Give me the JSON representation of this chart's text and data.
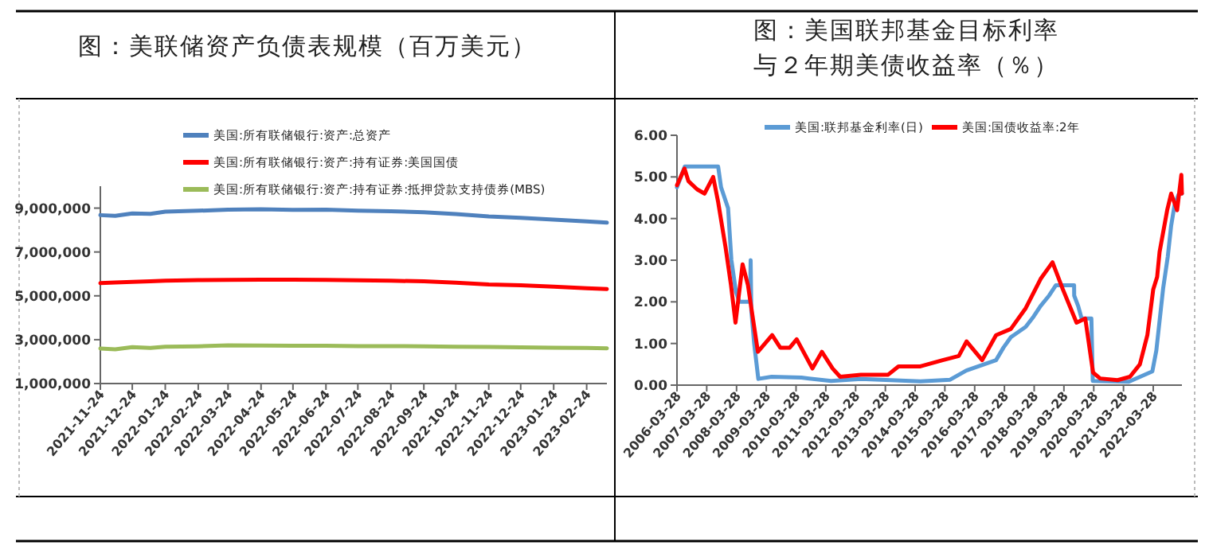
{
  "chart_data": [
    {
      "type": "line",
      "title": "图：美联储资产负债表规模（百万美元）",
      "legend": "top left",
      "x": [
        "2021-11-24",
        "2021-12-08",
        "2021-12-24",
        "2022-01-10",
        "2022-01-24",
        "2022-02-24",
        "2022-03-24",
        "2022-04-24",
        "2022-05-24",
        "2022-06-24",
        "2022-07-24",
        "2022-08-24",
        "2022-09-24",
        "2022-10-24",
        "2022-11-24",
        "2022-12-24",
        "2023-01-24",
        "2023-02-24",
        "2023-03-15"
      ],
      "series": [
        {
          "name": "美国:所有联储银行:资产:总资产",
          "color": "#4f81bd",
          "values": [
            8680000,
            8650000,
            8760000,
            8740000,
            8840000,
            8880000,
            8930000,
            8950000,
            8920000,
            8930000,
            8880000,
            8860000,
            8810000,
            8730000,
            8620000,
            8560000,
            8480000,
            8390000,
            8340000
          ]
        },
        {
          "name": "美国:所有联储银行:资产:持有证券:美国国债",
          "color": "#ff0000",
          "values": [
            5580000,
            5610000,
            5640000,
            5660000,
            5690000,
            5720000,
            5730000,
            5740000,
            5740000,
            5730000,
            5710000,
            5690000,
            5660000,
            5600000,
            5520000,
            5480000,
            5420000,
            5350000,
            5310000
          ]
        },
        {
          "name": "美国:所有联储银行:资产:持有证券:抵押贷款支持债券(MBS)",
          "color": "#9bbb59",
          "values": [
            2600000,
            2560000,
            2660000,
            2620000,
            2680000,
            2700000,
            2740000,
            2730000,
            2720000,
            2720000,
            2710000,
            2710000,
            2700000,
            2680000,
            2670000,
            2650000,
            2630000,
            2620000,
            2610000
          ]
        }
      ],
      "ylim": [
        1000000,
        10000000
      ],
      "yticks": [
        {
          "value": 1000000,
          "label": "1,000,000"
        },
        {
          "value": 3000000,
          "label": "3,000,000"
        },
        {
          "value": 5000000,
          "label": "5,000,000"
        },
        {
          "value": 7000000,
          "label": "7,000,000"
        },
        {
          "value": 9000000,
          "label": "9,000,000"
        }
      ],
      "xlim": [
        "2021-11-24",
        "2023-03-15"
      ],
      "xticks": [
        "2021-11-24",
        "2021-12-24",
        "2022-01-24",
        "2022-02-24",
        "2022-03-24",
        "2022-04-24",
        "2022-05-24",
        "2022-06-24",
        "2022-07-24",
        "2022-08-24",
        "2022-09-24",
        "2022-10-24",
        "2022-11-24",
        "2022-12-24",
        "2023-01-24",
        "2023-02-24"
      ]
    },
    {
      "type": "line",
      "title": "图：美国联邦基金目标利率",
      "subtitle": "与２年期美债收益率（％）",
      "legend": "top",
      "series": [
        {
          "name": "美国:联邦基金利率(日)",
          "color": "#5b9bd5",
          "x": [
            "2006-03-28",
            "2006-05-15",
            "2006-07-01",
            "2007-08-15",
            "2007-09-20",
            "2007-12-15",
            "2008-01-25",
            "2008-03-20",
            "2008-05-01",
            "2008-09-10",
            "2008-09-17",
            "2008-09-25",
            "2008-10-30",
            "2008-12-20",
            "2009-06-01",
            "2010-06-01",
            "2011-06-01",
            "2012-06-01",
            "2013-06-01",
            "2014-06-01",
            "2015-06-01",
            "2015-12-17",
            "2016-12-15",
            "2017-03-16",
            "2017-06-15",
            "2017-12-14",
            "2018-03-22",
            "2018-06-14",
            "2018-09-27",
            "2018-12-20",
            "2019-07-31",
            "2019-08-01",
            "2019-09-19",
            "2019-10-31",
            "2020-02-28",
            "2020-03-16",
            "2021-06-01",
            "2022-03-17",
            "2022-05-05",
            "2022-06-16",
            "2022-07-28",
            "2022-09-22",
            "2022-11-03",
            "2022-12-15",
            "2023-02-02",
            "2023-03-15"
          ],
          "values": [
            4.75,
            5.0,
            5.25,
            5.25,
            4.75,
            4.25,
            3.0,
            2.25,
            2.0,
            2.0,
            3.0,
            1.8,
            1.0,
            0.15,
            0.2,
            0.18,
            0.1,
            0.15,
            0.12,
            0.09,
            0.13,
            0.35,
            0.6,
            0.9,
            1.15,
            1.4,
            1.65,
            1.9,
            2.15,
            2.4,
            2.4,
            2.15,
            1.9,
            1.6,
            1.6,
            0.1,
            0.08,
            0.33,
            0.83,
            1.58,
            2.33,
            3.08,
            3.83,
            4.33,
            4.58,
            4.6
          ]
        },
        {
          "name": "美国:国债收益率:2年",
          "color": "#ff0000",
          "x": [
            "2006-03-28",
            "2006-06-28",
            "2006-08-15",
            "2006-12-01",
            "2007-03-01",
            "2007-06-15",
            "2007-08-15",
            "2007-11-15",
            "2008-01-20",
            "2008-03-15",
            "2008-06-10",
            "2008-08-15",
            "2008-10-15",
            "2008-12-15",
            "2009-06-08",
            "2009-09-15",
            "2010-01-10",
            "2010-04-05",
            "2010-10-15",
            "2011-02-08",
            "2011-06-20",
            "2011-09-20",
            "2012-06-01",
            "2013-05-01",
            "2013-09-05",
            "2014-06-01",
            "2015-03-01",
            "2015-09-15",
            "2015-12-20",
            "2016-06-28",
            "2016-12-15",
            "2017-06-15",
            "2017-12-15",
            "2018-06-15",
            "2018-11-08",
            "2019-03-15",
            "2019-08-30",
            "2019-12-15",
            "2020-03-20",
            "2020-06-15",
            "2021-01-15",
            "2021-06-15",
            "2021-10-15",
            "2022-01-15",
            "2022-03-28",
            "2022-05-15",
            "2022-06-14",
            "2022-09-15",
            "2022-11-03",
            "2023-01-15",
            "2023-03-08",
            "2023-03-15"
          ],
          "values": [
            4.8,
            5.2,
            4.9,
            4.7,
            4.6,
            5.0,
            4.4,
            3.3,
            2.4,
            1.5,
            2.9,
            2.4,
            1.6,
            0.8,
            1.2,
            0.9,
            0.9,
            1.1,
            0.4,
            0.8,
            0.4,
            0.2,
            0.25,
            0.25,
            0.45,
            0.45,
            0.6,
            0.7,
            1.05,
            0.6,
            1.2,
            1.35,
            1.85,
            2.55,
            2.95,
            2.3,
            1.5,
            1.6,
            0.3,
            0.16,
            0.12,
            0.2,
            0.5,
            1.2,
            2.3,
            2.6,
            3.2,
            4.2,
            4.6,
            4.2,
            5.05,
            4.6
          ]
        }
      ],
      "ylim": [
        0,
        6
      ],
      "yticks": [
        {
          "value": 0,
          "label": "0.00"
        },
        {
          "value": 1,
          "label": "1.00"
        },
        {
          "value": 2,
          "label": "2.00"
        },
        {
          "value": 3,
          "label": "3.00"
        },
        {
          "value": 4,
          "label": "4.00"
        },
        {
          "value": 5,
          "label": "5.00"
        },
        {
          "value": 6,
          "label": "6.00"
        }
      ],
      "xlim": [
        "2006-03-28",
        "2023-03-15"
      ],
      "xticks": [
        "2006-03-28",
        "2007-03-28",
        "2008-03-28",
        "2009-03-28",
        "2010-03-28",
        "2011-03-28",
        "2012-03-28",
        "2013-03-28",
        "2014-03-28",
        "2015-03-28",
        "2016-03-28",
        "2017-03-28",
        "2018-03-28",
        "2019-03-28",
        "2020-03-28",
        "2021-03-28",
        "2022-03-28"
      ]
    }
  ]
}
